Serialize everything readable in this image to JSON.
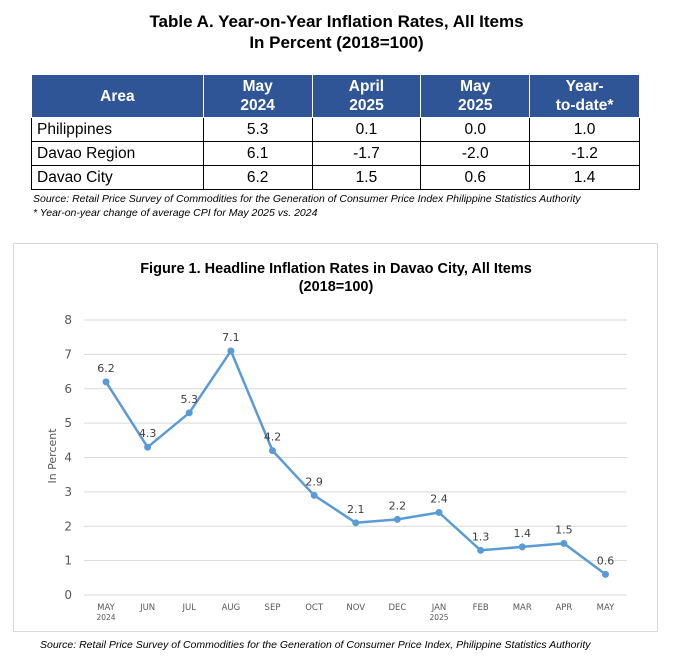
{
  "table": {
    "title_line1": "Table A. Year-on-Year Inflation Rates, All Items",
    "title_line2": "In Percent (2018=100)",
    "headers": [
      "Area",
      "May\n2024",
      "April\n2025",
      "May\n2025",
      "Year-\nto-date*"
    ],
    "rows": [
      {
        "area": "Philippines",
        "values": [
          "5.3",
          "0.1",
          "0.0",
          "1.0"
        ]
      },
      {
        "area": "Davao Region",
        "values": [
          "6.1",
          "-1.7",
          "-2.0",
          "-1.2"
        ]
      },
      {
        "area": "Davao City",
        "values": [
          "6.2",
          "1.5",
          "0.6",
          "1.4"
        ]
      }
    ],
    "source": "Source: Retail Price Survey of Commodities for the Generation of Consumer Price Index Philippine Statistics Authority",
    "note": "* Year-on-year change of average CPI for May 2025 vs. 2024"
  },
  "chart_source": "Source: Retail Price Survey of Commodities for the Generation of Consumer Price Index, Philippine Statistics Authority",
  "colors": {
    "header_bg": "#2f5597",
    "line": "#5b9bd5",
    "grid": "#d9d9d9"
  },
  "chart_data": {
    "type": "line",
    "title": "Figure 1. Headline Inflation Rates in Davao City, All Items",
    "subtitle": "(2018=100)",
    "ylabel": "In Percent",
    "xlabel": "",
    "categories": [
      "MAY\n2024",
      "JUN",
      "JUL",
      "AUG",
      "SEP",
      "OCT",
      "NOV",
      "DEC",
      "JAN\n2025",
      "FEB",
      "MAR",
      "APR",
      "MAY"
    ],
    "series": [
      {
        "values": [
          6.2,
          4.3,
          5.3,
          7.1,
          4.2,
          2.9,
          2.1,
          2.2,
          2.4,
          1.3,
          1.4,
          1.5,
          0.6
        ]
      }
    ],
    "ylim": [
      0,
      8
    ],
    "yticks": [
      0,
      1,
      2,
      3,
      4,
      5,
      6,
      7,
      8
    ],
    "grid": true,
    "legend": "none",
    "data_labels": [
      "6.2",
      "4.3",
      "5.3",
      "7.1",
      "4.2",
      "2.9",
      "2.1",
      "2.2",
      "2.4",
      "1.3",
      "1.4",
      "1.5",
      "0.6"
    ]
  }
}
